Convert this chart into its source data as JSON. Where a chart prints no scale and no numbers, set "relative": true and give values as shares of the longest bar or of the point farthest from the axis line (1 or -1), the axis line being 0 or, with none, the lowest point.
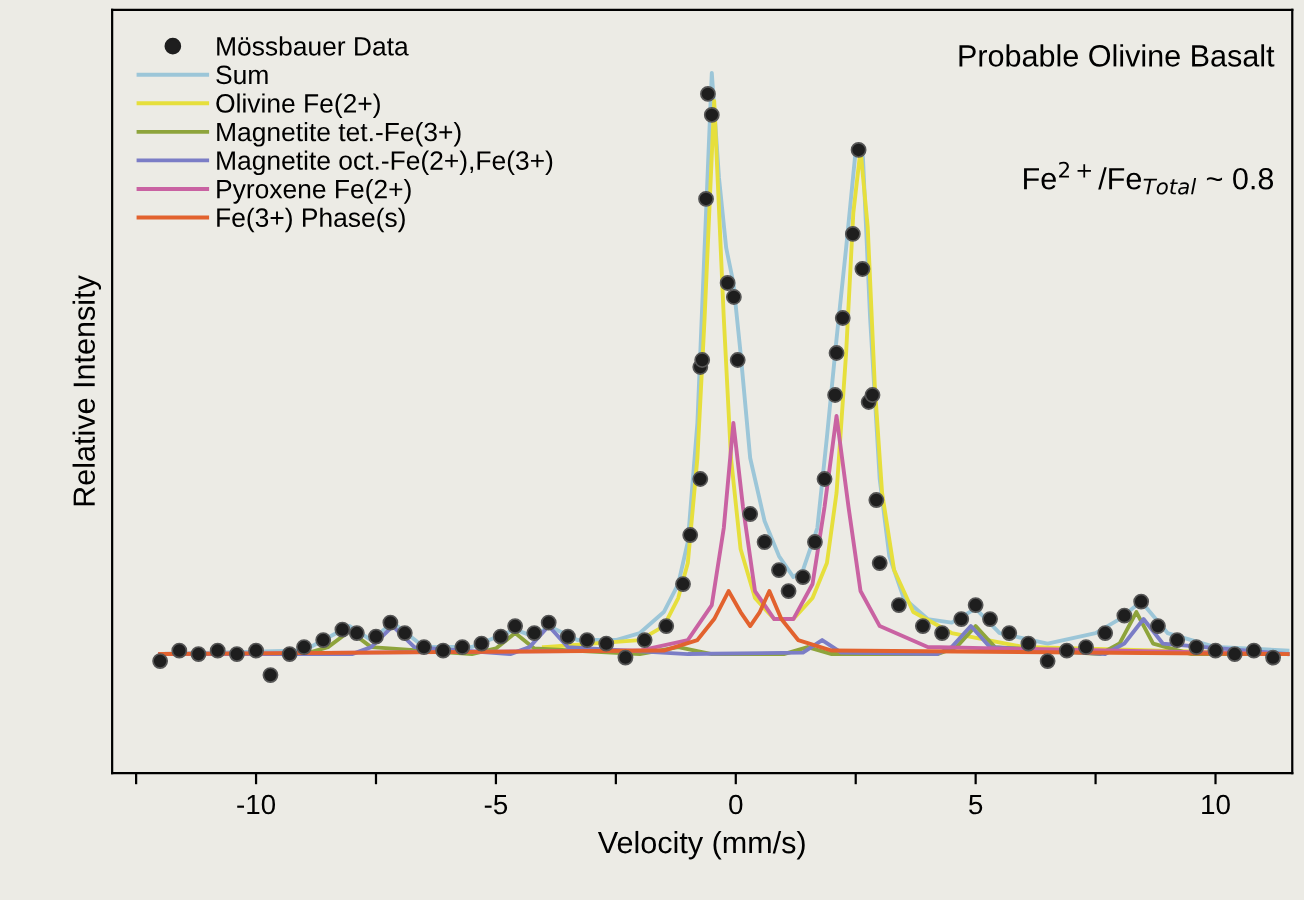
{
  "chart_data": {
    "type": "line",
    "relative": true,
    "xlabel": "Velocity (mm/s)",
    "ylabel": "Relative Intensity",
    "annotations": [
      "Probable Olivine Basalt",
      "Fe$^{2+}$/Fe$_{Total}$ ~ 0.8"
    ],
    "xlim": [
      -13,
      11.6
    ],
    "xticks": [
      {
        "value": -12.5,
        "label": null
      },
      -10,
      {
        "value": -7.5,
        "label": null
      },
      -5,
      {
        "value": -2.5,
        "label": null
      },
      0,
      {
        "value": 2.5,
        "label": null
      },
      5,
      {
        "value": 7.5,
        "label": null
      },
      10
    ],
    "tick_labels": "x",
    "grid": false,
    "legend": "top left",
    "series": [
      {
        "name": "Mössbauer Data",
        "type": "scatter",
        "marker": "circle",
        "color": "#1e1e1e",
        "x": [
          -12,
          -11.6,
          -11.2,
          -10.8,
          -10.4,
          -10,
          -9.7,
          -9.3,
          -9,
          -8.6,
          -8.2,
          -7.9,
          -7.5,
          -7.2,
          -6.9,
          -6.5,
          -6.1,
          -5.7,
          -5.3,
          -4.9,
          -4.6,
          -4.2,
          -3.9,
          -3.5,
          -3.1,
          -2.7,
          -2.3,
          -1.9,
          -1.45,
          -1.1,
          -0.95,
          -0.74,
          -0.74,
          -0.7,
          -0.62,
          -0.58,
          -0.5,
          -0.17,
          -0.04,
          0.04,
          0.3,
          0.6,
          0.9,
          1.1,
          1.4,
          1.65,
          1.85,
          2.07,
          2.1,
          2.23,
          2.44,
          2.56,
          2.64,
          2.77,
          2.85,
          2.93,
          3.0,
          3.4,
          3.9,
          4.3,
          4.7,
          5.0,
          5.3,
          5.7,
          6.1,
          6.5,
          6.9,
          7.3,
          7.7,
          8.1,
          8.45,
          8.8,
          9.2,
          9.6,
          10,
          10.4,
          10.8,
          11.2
        ],
        "values": [
          0.16,
          0.175,
          0.17,
          0.175,
          0.17,
          0.175,
          0.14,
          0.17,
          0.18,
          0.19,
          0.205,
          0.2,
          0.195,
          0.215,
          0.2,
          0.18,
          0.175,
          0.18,
          0.185,
          0.195,
          0.21,
          0.2,
          0.215,
          0.195,
          0.19,
          0.185,
          0.165,
          0.19,
          0.21,
          0.27,
          0.34,
          0.42,
          0.58,
          0.59,
          0.82,
          0.97,
          0.94,
          0.7,
          0.68,
          0.59,
          0.37,
          0.33,
          0.29,
          0.26,
          0.28,
          0.33,
          0.42,
          0.54,
          0.6,
          0.65,
          0.77,
          0.89,
          0.72,
          0.53,
          0.54,
          0.39,
          0.3,
          0.24,
          0.21,
          0.2,
          0.22,
          0.24,
          0.22,
          0.2,
          0.185,
          0.16,
          0.175,
          0.18,
          0.2,
          0.225,
          0.245,
          0.21,
          0.19,
          0.18,
          0.175,
          0.17,
          0.175,
          0.165
        ]
      },
      {
        "name": "Sum",
        "color": "#9cc6d8",
        "x": [
          -12,
          -9,
          -8.05,
          -7.6,
          -7.15,
          -6.5,
          -5.5,
          -4.6,
          -4.2,
          -3.9,
          -3.3,
          -2.5,
          -2,
          -1.5,
          -1.2,
          -1.0,
          -0.8,
          -0.65,
          -0.5,
          -0.35,
          -0.2,
          -0.05,
          0.1,
          0.3,
          0.6,
          0.9,
          1.2,
          1.4,
          1.7,
          1.9,
          2.1,
          2.3,
          2.5,
          2.65,
          2.8,
          3.0,
          3.2,
          3.5,
          4.0,
          4.5,
          5.0,
          5.5,
          6.5,
          7.5,
          8.0,
          8.45,
          9,
          10,
          11.5
        ],
        "values": [
          0.17,
          0.175,
          0.21,
          0.19,
          0.215,
          0.18,
          0.18,
          0.205,
          0.195,
          0.21,
          0.19,
          0.19,
          0.2,
          0.23,
          0.27,
          0.33,
          0.5,
          0.75,
          1.0,
          0.85,
          0.75,
          0.7,
          0.6,
          0.45,
          0.36,
          0.31,
          0.28,
          0.29,
          0.35,
          0.48,
          0.62,
          0.75,
          0.89,
          0.88,
          0.65,
          0.42,
          0.31,
          0.25,
          0.22,
          0.215,
          0.235,
          0.2,
          0.185,
          0.2,
          0.22,
          0.245,
          0.2,
          0.18,
          0.175
        ]
      },
      {
        "name": "Olivine Fe(2+)",
        "color": "#e6df3c",
        "x": [
          -4,
          -2,
          -1.5,
          -1.2,
          -1.0,
          -0.8,
          -0.65,
          -0.45,
          -0.25,
          -0.1,
          0.1,
          0.4,
          0.8,
          1.2,
          1.6,
          1.9,
          2.1,
          2.3,
          2.45,
          2.6,
          2.75,
          2.9,
          3.05,
          3.3,
          3.7,
          4.5,
          6,
          11.5
        ],
        "values": [
          0.18,
          0.19,
          0.21,
          0.25,
          0.3,
          0.45,
          0.65,
          0.96,
          0.65,
          0.45,
          0.32,
          0.25,
          0.22,
          0.22,
          0.25,
          0.3,
          0.4,
          0.6,
          0.8,
          0.89,
          0.78,
          0.55,
          0.4,
          0.29,
          0.23,
          0.2,
          0.18,
          0.17
        ]
      },
      {
        "name": "Magnetite tet.-Fe(3+)",
        "color": "#8ea43c",
        "x": [
          -12,
          -9,
          -8.5,
          -8.05,
          -7.6,
          -5.5,
          -5,
          -4.6,
          -4.2,
          -2,
          -1.2,
          -0.5,
          1,
          1.5,
          2,
          4.2,
          4.6,
          5.0,
          5.4,
          7.6,
          8.0,
          8.35,
          8.7,
          9.5,
          11.5
        ],
        "values": [
          0.17,
          0.17,
          0.18,
          0.203,
          0.18,
          0.17,
          0.178,
          0.2,
          0.178,
          0.17,
          0.18,
          0.17,
          0.17,
          0.18,
          0.17,
          0.17,
          0.18,
          0.21,
          0.18,
          0.17,
          0.185,
          0.23,
          0.185,
          0.17,
          0.17
        ]
      },
      {
        "name": "Magnetite oct.-Fe(2+),Fe(3+)",
        "color": "#7b7dc6",
        "x": [
          -12,
          -8,
          -7.6,
          -7.15,
          -6.7,
          -4.7,
          -4.3,
          -3.9,
          -3.5,
          -1,
          1.4,
          1.8,
          2.2,
          4.2,
          4.5,
          4.9,
          5.3,
          7.7,
          8.1,
          8.5,
          8.9,
          11.5
        ],
        "values": [
          0.17,
          0.17,
          0.18,
          0.21,
          0.18,
          0.17,
          0.18,
          0.21,
          0.18,
          0.17,
          0.172,
          0.19,
          0.172,
          0.17,
          0.18,
          0.21,
          0.18,
          0.17,
          0.185,
          0.22,
          0.185,
          0.17
        ]
      },
      {
        "name": "Pyroxene Fe(2+)",
        "color": "#c962a2",
        "x": [
          -12,
          -2,
          -1,
          -0.5,
          -0.25,
          -0.05,
          0.15,
          0.4,
          0.8,
          1.2,
          1.6,
          1.85,
          2.1,
          2.35,
          2.6,
          3,
          4,
          11.5
        ],
        "values": [
          0.17,
          0.175,
          0.19,
          0.24,
          0.35,
          0.5,
          0.38,
          0.26,
          0.22,
          0.22,
          0.27,
          0.38,
          0.51,
          0.38,
          0.26,
          0.21,
          0.18,
          0.17
        ]
      },
      {
        "name": "Fe(3+) Phase(s)",
        "color": "#e2622e",
        "x": [
          -12,
          -1.5,
          -0.8,
          -0.45,
          -0.15,
          0.1,
          0.3,
          0.5,
          0.7,
          0.95,
          1.3,
          2,
          11.5
        ],
        "values": [
          0.17,
          0.175,
          0.19,
          0.22,
          0.26,
          0.23,
          0.21,
          0.23,
          0.26,
          0.22,
          0.19,
          0.175,
          0.17
        ]
      }
    ]
  }
}
